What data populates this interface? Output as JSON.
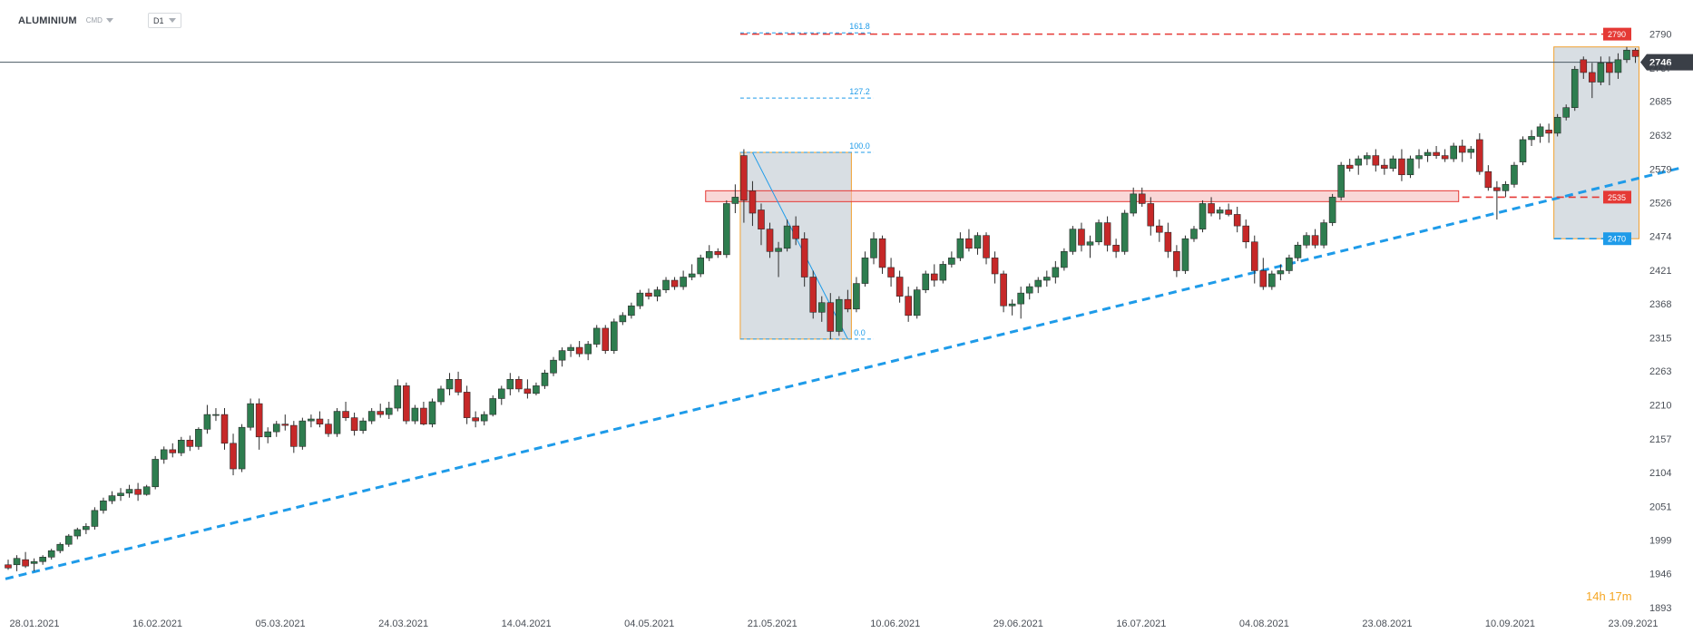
{
  "toolbar": {
    "symbol": "ALUMINIUM",
    "category": "CMD",
    "timeframe": "D1",
    "category_icon": "chevron-down-icon",
    "timeframe_icon": "chevron-down-icon"
  },
  "countdown": {
    "hours": "14",
    "h_unit": "h",
    "minutes": "17",
    "m_unit": "m"
  },
  "colors": {
    "bull": "#2e7d4f",
    "bear": "#c62828",
    "trendline": "#1e9be9",
    "resistance": "#e53935",
    "fib": "#1e9be9",
    "box_fill": "#d4dae0",
    "box_border": "#f0a030",
    "current_price_line": "#4a5a63"
  },
  "chart_data": {
    "type": "candlestick",
    "title": "",
    "y_range": [
      1893,
      2815
    ],
    "y_ticks": [
      2790,
      2737,
      2685,
      2632,
      2579,
      2526,
      2474,
      2421,
      2368,
      2315,
      2263,
      2210,
      2157,
      2104,
      2051,
      1999,
      1946,
      1893
    ],
    "x_tick_labels": [
      "28.01.2021",
      "16.02.2021",
      "05.03.2021",
      "24.03.2021",
      "14.04.2021",
      "04.05.2021",
      "21.05.2021",
      "10.06.2021",
      "29.06.2021",
      "16.07.2021",
      "04.08.2021",
      "23.08.2021",
      "10.09.2021",
      "23.09.2021"
    ],
    "current_price": 2746,
    "price_labels": [
      {
        "value": 2790,
        "color": "#e53935"
      },
      {
        "value": 2535,
        "color": "#e53935"
      },
      {
        "value": 2470,
        "color": "#1e9be9"
      },
      {
        "value": 2746,
        "color": "#3a3f47"
      }
    ],
    "fibonacci": [
      {
        "level": "161.8",
        "price": 2792
      },
      {
        "level": "127.2",
        "price": 2690
      },
      {
        "level": "100.0",
        "price": 2605
      },
      {
        "level": "0.0",
        "price": 2313
      }
    ],
    "resistance_zone": [
      2528,
      2545
    ],
    "trendline": [
      {
        "bar": 0,
        "price": 1938
      },
      {
        "bar": 193,
        "price": 2580
      }
    ],
    "boxes": [
      {
        "from_bar": 85,
        "to_bar": 97,
        "high": 2605,
        "low": 2313
      },
      {
        "from_bar": 179,
        "to_bar": 188,
        "high": 2770,
        "low": 2470
      }
    ],
    "candles": [
      [
        1960,
        1968,
        1952,
        1955
      ],
      [
        1960,
        1975,
        1950,
        1970
      ],
      [
        1968,
        1980,
        1955,
        1958
      ],
      [
        1962,
        1970,
        1950,
        1965
      ],
      [
        1965,
        1975,
        1960,
        1972
      ],
      [
        1972,
        1985,
        1968,
        1982
      ],
      [
        1982,
        1995,
        1978,
        1992
      ],
      [
        1992,
        2008,
        1988,
        2005
      ],
      [
        2005,
        2018,
        2000,
        2015
      ],
      [
        2015,
        2025,
        2008,
        2020
      ],
      [
        2020,
        2050,
        2015,
        2045
      ],
      [
        2045,
        2065,
        2040,
        2060
      ],
      [
        2060,
        2075,
        2055,
        2068
      ],
      [
        2068,
        2080,
        2060,
        2072
      ],
      [
        2072,
        2085,
        2065,
        2078
      ],
      [
        2078,
        2088,
        2060,
        2070
      ],
      [
        2070,
        2085,
        2068,
        2082
      ],
      [
        2082,
        2130,
        2078,
        2125
      ],
      [
        2125,
        2145,
        2118,
        2140
      ],
      [
        2140,
        2150,
        2128,
        2135
      ],
      [
        2135,
        2160,
        2130,
        2155
      ],
      [
        2155,
        2162,
        2138,
        2145
      ],
      [
        2145,
        2175,
        2140,
        2172
      ],
      [
        2172,
        2210,
        2165,
        2195
      ],
      [
        2195,
        2205,
        2185,
        2195
      ],
      [
        2195,
        2205,
        2140,
        2150
      ],
      [
        2150,
        2165,
        2100,
        2110
      ],
      [
        2110,
        2180,
        2105,
        2175
      ],
      [
        2175,
        2220,
        2170,
        2212
      ],
      [
        2212,
        2220,
        2140,
        2160
      ],
      [
        2160,
        2175,
        2150,
        2168
      ],
      [
        2168,
        2185,
        2160,
        2180
      ],
      [
        2180,
        2195,
        2170,
        2178
      ],
      [
        2178,
        2185,
        2135,
        2145
      ],
      [
        2145,
        2190,
        2140,
        2185
      ],
      [
        2185,
        2195,
        2175,
        2188
      ],
      [
        2188,
        2200,
        2175,
        2180
      ],
      [
        2180,
        2188,
        2160,
        2165
      ],
      [
        2165,
        2205,
        2160,
        2200
      ],
      [
        2200,
        2215,
        2185,
        2190
      ],
      [
        2190,
        2198,
        2162,
        2170
      ],
      [
        2170,
        2190,
        2165,
        2185
      ],
      [
        2185,
        2205,
        2180,
        2200
      ],
      [
        2200,
        2212,
        2190,
        2195
      ],
      [
        2195,
        2215,
        2188,
        2205
      ],
      [
        2205,
        2250,
        2200,
        2240
      ],
      [
        2240,
        2245,
        2180,
        2185
      ],
      [
        2185,
        2210,
        2180,
        2205
      ],
      [
        2205,
        2215,
        2178,
        2180
      ],
      [
        2180,
        2220,
        2175,
        2215
      ],
      [
        2215,
        2240,
        2210,
        2235
      ],
      [
        2235,
        2260,
        2225,
        2250
      ],
      [
        2250,
        2262,
        2225,
        2230
      ],
      [
        2230,
        2240,
        2180,
        2190
      ],
      [
        2190,
        2200,
        2175,
        2185
      ],
      [
        2185,
        2200,
        2178,
        2195
      ],
      [
        2195,
        2225,
        2192,
        2220
      ],
      [
        2220,
        2240,
        2210,
        2235
      ],
      [
        2235,
        2260,
        2225,
        2250
      ],
      [
        2250,
        2255,
        2230,
        2235
      ],
      [
        2235,
        2250,
        2220,
        2228
      ],
      [
        2228,
        2245,
        2225,
        2240
      ],
      [
        2240,
        2265,
        2235,
        2260
      ],
      [
        2260,
        2285,
        2255,
        2280
      ],
      [
        2280,
        2300,
        2270,
        2295
      ],
      [
        2295,
        2305,
        2285,
        2300
      ],
      [
        2300,
        2310,
        2285,
        2290
      ],
      [
        2290,
        2310,
        2280,
        2305
      ],
      [
        2305,
        2335,
        2300,
        2330
      ],
      [
        2330,
        2335,
        2290,
        2295
      ],
      [
        2295,
        2345,
        2290,
        2340
      ],
      [
        2340,
        2355,
        2335,
        2350
      ],
      [
        2350,
        2370,
        2345,
        2365
      ],
      [
        2365,
        2390,
        2360,
        2385
      ],
      [
        2385,
        2392,
        2375,
        2380
      ],
      [
        2380,
        2395,
        2372,
        2390
      ],
      [
        2390,
        2410,
        2385,
        2405
      ],
      [
        2405,
        2410,
        2390,
        2395
      ],
      [
        2395,
        2420,
        2390,
        2410
      ],
      [
        2410,
        2430,
        2405,
        2415
      ],
      [
        2415,
        2445,
        2410,
        2440
      ],
      [
        2440,
        2460,
        2435,
        2450
      ],
      [
        2450,
        2455,
        2440,
        2445
      ],
      [
        2445,
        2530,
        2440,
        2525
      ],
      [
        2525,
        2555,
        2510,
        2535
      ],
      [
        2600,
        2610,
        2495,
        2530
      ],
      [
        2545,
        2560,
        2490,
        2510
      ],
      [
        2515,
        2525,
        2460,
        2485
      ],
      [
        2485,
        2495,
        2440,
        2450
      ],
      [
        2450,
        2465,
        2410,
        2455
      ],
      [
        2455,
        2500,
        2450,
        2490
      ],
      [
        2490,
        2505,
        2460,
        2470
      ],
      [
        2470,
        2480,
        2395,
        2410
      ],
      [
        2410,
        2420,
        2345,
        2355
      ],
      [
        2355,
        2380,
        2340,
        2370
      ],
      [
        2370,
        2385,
        2313,
        2325
      ],
      [
        2325,
        2380,
        2318,
        2375
      ],
      [
        2375,
        2390,
        2355,
        2360
      ],
      [
        2360,
        2410,
        2355,
        2400
      ],
      [
        2400,
        2450,
        2395,
        2440
      ],
      [
        2440,
        2480,
        2430,
        2470
      ],
      [
        2470,
        2475,
        2415,
        2425
      ],
      [
        2425,
        2440,
        2395,
        2410
      ],
      [
        2410,
        2420,
        2370,
        2380
      ],
      [
        2380,
        2395,
        2340,
        2350
      ],
      [
        2350,
        2395,
        2345,
        2390
      ],
      [
        2390,
        2420,
        2385,
        2415
      ],
      [
        2415,
        2430,
        2395,
        2405
      ],
      [
        2405,
        2435,
        2400,
        2430
      ],
      [
        2430,
        2450,
        2425,
        2440
      ],
      [
        2440,
        2480,
        2435,
        2470
      ],
      [
        2470,
        2485,
        2450,
        2455
      ],
      [
        2455,
        2480,
        2445,
        2475
      ],
      [
        2475,
        2480,
        2430,
        2440
      ],
      [
        2440,
        2450,
        2400,
        2415
      ],
      [
        2415,
        2420,
        2355,
        2365
      ],
      [
        2365,
        2375,
        2350,
        2368
      ],
      [
        2368,
        2395,
        2345,
        2385
      ],
      [
        2385,
        2400,
        2375,
        2395
      ],
      [
        2395,
        2410,
        2385,
        2405
      ],
      [
        2405,
        2420,
        2395,
        2410
      ],
      [
        2410,
        2435,
        2400,
        2425
      ],
      [
        2425,
        2455,
        2420,
        2450
      ],
      [
        2450,
        2490,
        2445,
        2485
      ],
      [
        2485,
        2495,
        2450,
        2460
      ],
      [
        2460,
        2475,
        2440,
        2465
      ],
      [
        2465,
        2500,
        2460,
        2495
      ],
      [
        2495,
        2505,
        2450,
        2460
      ],
      [
        2460,
        2470,
        2440,
        2450
      ],
      [
        2450,
        2515,
        2445,
        2510
      ],
      [
        2510,
        2550,
        2505,
        2540
      ],
      [
        2540,
        2550,
        2520,
        2525
      ],
      [
        2525,
        2535,
        2475,
        2490
      ],
      [
        2490,
        2500,
        2465,
        2480
      ],
      [
        2480,
        2495,
        2440,
        2450
      ],
      [
        2450,
        2460,
        2410,
        2420
      ],
      [
        2420,
        2475,
        2415,
        2470
      ],
      [
        2470,
        2490,
        2465,
        2485
      ],
      [
        2485,
        2530,
        2480,
        2525
      ],
      [
        2525,
        2535,
        2505,
        2510
      ],
      [
        2510,
        2520,
        2500,
        2515
      ],
      [
        2515,
        2525,
        2505,
        2508
      ],
      [
        2508,
        2520,
        2480,
        2490
      ],
      [
        2490,
        2500,
        2455,
        2465
      ],
      [
        2465,
        2475,
        2400,
        2420
      ],
      [
        2420,
        2440,
        2390,
        2395
      ],
      [
        2395,
        2420,
        2390,
        2415
      ],
      [
        2415,
        2430,
        2405,
        2420
      ],
      [
        2420,
        2445,
        2415,
        2440
      ],
      [
        2440,
        2465,
        2435,
        2460
      ],
      [
        2460,
        2480,
        2455,
        2475
      ],
      [
        2475,
        2485,
        2455,
        2460
      ],
      [
        2460,
        2500,
        2455,
        2495
      ],
      [
        2495,
        2540,
        2490,
        2535
      ],
      [
        2535,
        2590,
        2530,
        2585
      ],
      [
        2585,
        2595,
        2575,
        2580
      ],
      [
        2585,
        2600,
        2570,
        2595
      ],
      [
        2595,
        2605,
        2585,
        2600
      ],
      [
        2600,
        2610,
        2575,
        2585
      ],
      [
        2585,
        2595,
        2570,
        2580
      ],
      [
        2580,
        2600,
        2575,
        2595
      ],
      [
        2595,
        2610,
        2560,
        2570
      ],
      [
        2570,
        2600,
        2565,
        2595
      ],
      [
        2595,
        2610,
        2580,
        2600
      ],
      [
        2600,
        2610,
        2590,
        2605
      ],
      [
        2605,
        2615,
        2595,
        2600
      ],
      [
        2600,
        2610,
        2590,
        2595
      ],
      [
        2595,
        2620,
        2590,
        2615
      ],
      [
        2615,
        2625,
        2590,
        2605
      ],
      [
        2605,
        2615,
        2595,
        2610
      ],
      [
        2625,
        2635,
        2570,
        2575
      ],
      [
        2575,
        2585,
        2545,
        2550
      ],
      [
        2550,
        2560,
        2500,
        2545
      ],
      [
        2545,
        2560,
        2535,
        2555
      ],
      [
        2555,
        2590,
        2550,
        2585
      ],
      [
        2590,
        2630,
        2585,
        2625
      ],
      [
        2625,
        2640,
        2615,
        2630
      ],
      [
        2630,
        2650,
        2620,
        2645
      ],
      [
        2640,
        2650,
        2620,
        2635
      ],
      [
        2635,
        2665,
        2630,
        2660
      ],
      [
        2660,
        2680,
        2655,
        2675
      ],
      [
        2675,
        2740,
        2670,
        2735
      ],
      [
        2750,
        2755,
        2720,
        2730
      ],
      [
        2730,
        2745,
        2690,
        2715
      ],
      [
        2715,
        2755,
        2710,
        2745
      ],
      [
        2745,
        2755,
        2710,
        2730
      ],
      [
        2730,
        2760,
        2720,
        2750
      ],
      [
        2750,
        2770,
        2745,
        2765
      ],
      [
        2765,
        2768,
        2745,
        2755
      ]
    ]
  }
}
